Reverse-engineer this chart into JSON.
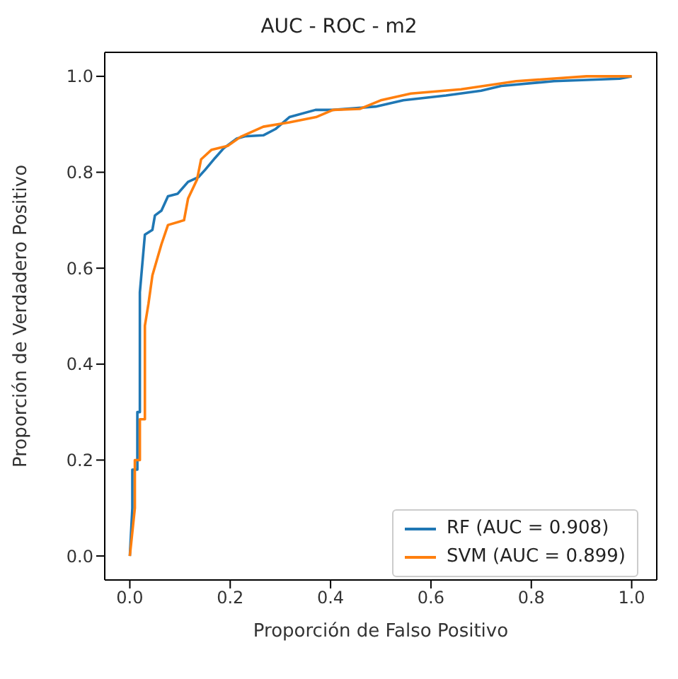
{
  "chart_data": {
    "type": "line",
    "title": "AUC - ROC - m2",
    "xlabel": "Proporción de Falso Positivo",
    "ylabel": "Proporción de Verdadero Positivo",
    "xlim": [
      -0.05,
      1.05
    ],
    "ylim": [
      -0.05,
      1.05
    ],
    "xticks": [
      {
        "value": 0,
        "label": "0.0"
      },
      {
        "value": 0.2,
        "label": "0.2"
      },
      {
        "value": 0.4,
        "label": "0.4"
      },
      {
        "value": 0.6,
        "label": "0.6"
      },
      {
        "value": 0.8,
        "label": "0.8"
      },
      {
        "value": 1,
        "label": "1.0"
      }
    ],
    "yticks": [
      {
        "value": 0,
        "label": "0.0"
      },
      {
        "value": 0.2,
        "label": "0.2"
      },
      {
        "value": 0.4,
        "label": "0.4"
      },
      {
        "value": 0.6,
        "label": "0.6"
      },
      {
        "value": 0.8,
        "label": "0.8"
      },
      {
        "value": 1,
        "label": "1.0"
      }
    ],
    "grid": false,
    "legend": "bottom right",
    "marker": "none",
    "line_style": "solid",
    "series": [
      {
        "name": "RF (AUC = 0.908)",
        "color": "#1f77b4",
        "x": [
          0,
          0.005,
          0.005,
          0.015,
          0.015,
          0.02,
          0.02,
          0.025,
          0.03,
          0.045,
          0.05,
          0.063,
          0.076,
          0.095,
          0.116,
          0.137,
          0.15,
          0.17,
          0.187,
          0.213,
          0.229,
          0.266,
          0.29,
          0.318,
          0.37,
          0.405,
          0.49,
          0.545,
          0.63,
          0.7,
          0.74,
          0.845,
          0.976,
          1
        ],
        "values": [
          0,
          0.1,
          0.18,
          0.18,
          0.3,
          0.3,
          0.55,
          0.61,
          0.67,
          0.68,
          0.71,
          0.72,
          0.75,
          0.755,
          0.78,
          0.79,
          0.805,
          0.83,
          0.85,
          0.87,
          0.875,
          0.877,
          0.89,
          0.915,
          0.93,
          0.93,
          0.937,
          0.95,
          0.96,
          0.97,
          0.98,
          0.99,
          0.995,
          1
        ]
      },
      {
        "name": "SVM (AUC = 0.899)",
        "color": "#ff7f0e",
        "x": [
          0,
          0.01,
          0.01,
          0.02,
          0.02,
          0.03,
          0.03,
          0.037,
          0.045,
          0.063,
          0.076,
          0.108,
          0.116,
          0.134,
          0.142,
          0.163,
          0.195,
          0.221,
          0.266,
          0.318,
          0.371,
          0.405,
          0.458,
          0.5,
          0.56,
          0.66,
          0.77,
          0.91,
          1
        ],
        "values": [
          0,
          0.1,
          0.2,
          0.2,
          0.285,
          0.285,
          0.48,
          0.525,
          0.585,
          0.65,
          0.69,
          0.7,
          0.745,
          0.785,
          0.827,
          0.847,
          0.855,
          0.874,
          0.895,
          0.904,
          0.915,
          0.93,
          0.932,
          0.95,
          0.964,
          0.973,
          0.99,
          1,
          1
        ]
      }
    ]
  }
}
